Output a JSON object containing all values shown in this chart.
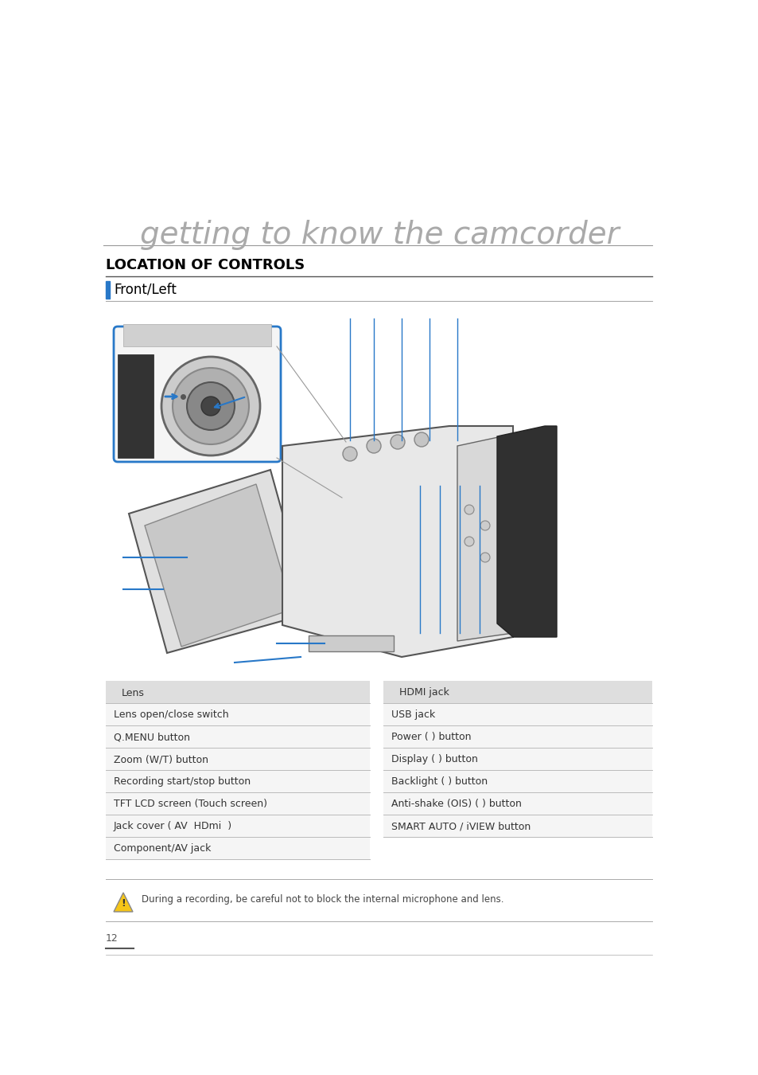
{
  "bg_color": "#ffffff",
  "title_text": "getting to know the camcorder",
  "title_color": "#aaaaaa",
  "section_title": "LOCATION OF CONTROLS",
  "section_title_color": "#000000",
  "subsection_title": "Front/Left",
  "subsection_color": "#000000",
  "left_items": [
    "Lens",
    "Lens open/close switch",
    "Q.MENU button",
    "Zoom (W/T) button",
    "Recording start/stop button",
    "TFT LCD screen (Touch screen)",
    "Jack cover ( AV  HDmi  )",
    "Component/AV jack"
  ],
  "right_items": [
    "HDMI jack",
    "USB jack",
    "Power ( ) button",
    "Display ( ) button",
    "Backlight ( ) button",
    "Anti-shake (OIS) ( ) button",
    "SMART AUTO / iVIEW button"
  ],
  "note_text": "During a recording, be careful not to block the internal microphone and lens.",
  "page_number": "12",
  "accent_color": "#2878c8",
  "line_color": "#cccccc",
  "dark_line_color": "#999999"
}
